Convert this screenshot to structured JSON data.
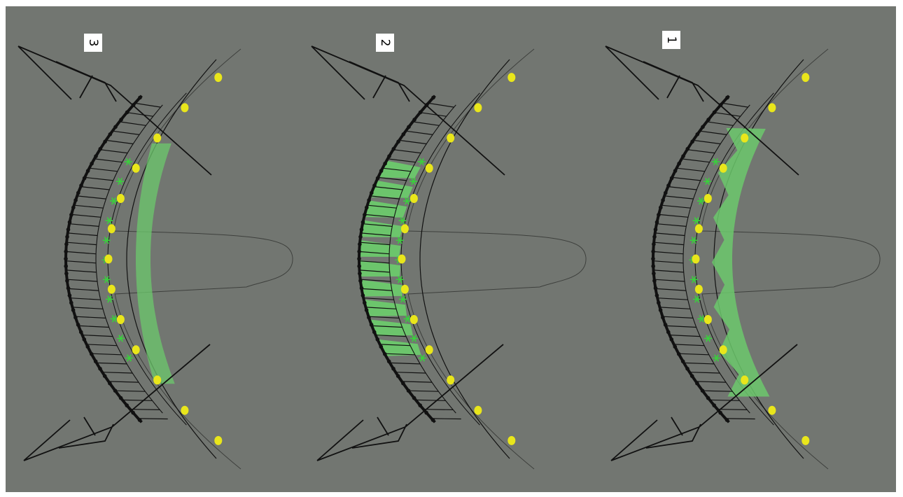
{
  "figure": {
    "background_color": "#727671",
    "line_color": "#111111",
    "guide_color": "#3e403d",
    "node_color": "#e9e61b",
    "fill_color": "#6cc96c",
    "star_color": "#39d13c"
  },
  "panels": [
    {
      "label": "3",
      "fill_style": "band",
      "node_count": 13
    },
    {
      "label": "2",
      "fill_style": "cells",
      "node_count": 13
    },
    {
      "label": "1",
      "fill_style": "zigzag",
      "node_count": 13
    }
  ]
}
